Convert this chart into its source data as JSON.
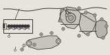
{
  "bg_color": "#e8e4dc",
  "fig_width": 1.6,
  "fig_height": 0.8,
  "dpi": 100,
  "lc": "#333333",
  "mc": "#555555",
  "fc": "#c8c4bc",
  "fc2": "#b8b4ac",
  "white": "#e8e4dc"
}
